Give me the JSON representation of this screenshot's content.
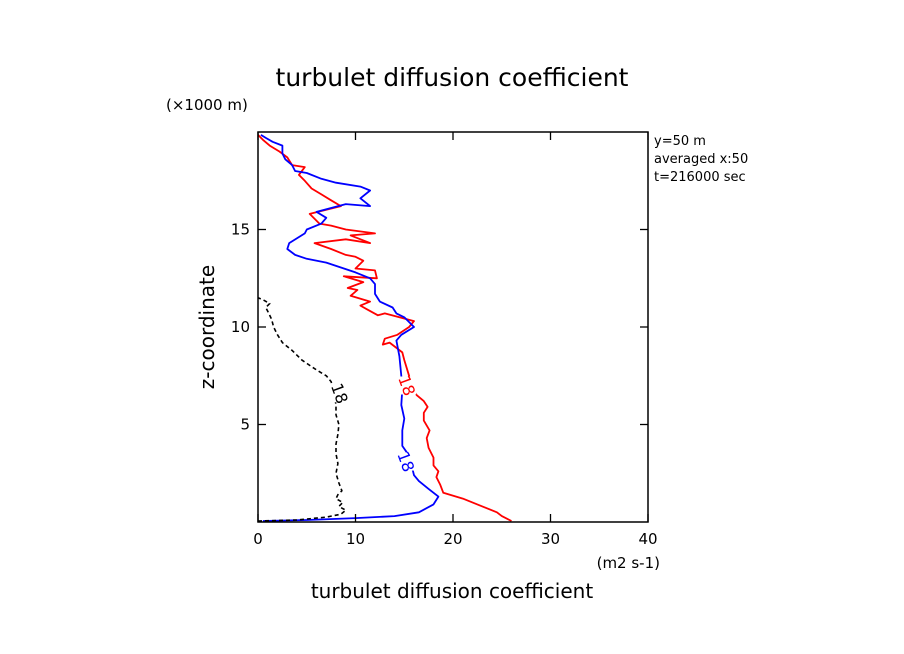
{
  "chart_data": {
    "type": "line",
    "title": "turbulet diffusion coefficient",
    "xlabel": "turbulet diffusion coefficient",
    "ylabel": "z-coordinate",
    "x_unit": "(m2 s-1)",
    "y_unit": "(×1000 m)",
    "xlim": [
      0,
      40
    ],
    "ylim": [
      0,
      20
    ],
    "x_ticks": [
      0,
      10,
      20,
      30,
      40
    ],
    "y_ticks": [
      5,
      10,
      15
    ],
    "grid": false,
    "legend": "none",
    "info_text": [
      "y=50 m",
      "averaged  x:50",
      "t=216000 sec"
    ],
    "series": [
      {
        "color": "#ff0000",
        "style": "solid",
        "label": "18",
        "label_at": [
          15.3,
          7.0
        ],
        "points": [
          [
            26.0,
            0.05
          ],
          [
            25.0,
            0.3
          ],
          [
            24.5,
            0.5
          ],
          [
            23.0,
            0.8
          ],
          [
            21.0,
            1.2
          ],
          [
            19.0,
            1.5
          ],
          [
            18.7,
            1.9
          ],
          [
            18.3,
            2.3
          ],
          [
            18.5,
            2.6
          ],
          [
            18.0,
            2.9
          ],
          [
            18.0,
            3.3
          ],
          [
            17.5,
            3.8
          ],
          [
            17.3,
            4.3
          ],
          [
            17.6,
            4.7
          ],
          [
            17.0,
            5.2
          ],
          [
            17.0,
            5.6
          ],
          [
            17.4,
            5.9
          ],
          [
            17.0,
            6.2
          ],
          [
            16.3,
            6.5
          ],
          [
            15.8,
            6.8
          ],
          [
            15.5,
            7.5
          ],
          [
            15.0,
            8.3
          ],
          [
            14.8,
            8.7
          ],
          [
            13.5,
            9.2
          ],
          [
            12.8,
            9.1
          ],
          [
            13.0,
            9.4
          ],
          [
            14.3,
            9.6
          ],
          [
            15.5,
            10.0
          ],
          [
            16.0,
            10.3
          ],
          [
            14.5,
            10.5
          ],
          [
            13.0,
            10.7
          ],
          [
            12.3,
            10.6
          ],
          [
            11.2,
            10.9
          ],
          [
            10.5,
            11.1
          ],
          [
            11.5,
            11.3
          ],
          [
            9.5,
            11.6
          ],
          [
            10.2,
            11.9
          ],
          [
            9.2,
            12.0
          ],
          [
            10.8,
            12.3
          ],
          [
            8.8,
            12.6
          ],
          [
            12.2,
            12.5
          ],
          [
            12.0,
            12.9
          ],
          [
            10.0,
            13.0
          ],
          [
            10.8,
            13.4
          ],
          [
            10.0,
            13.6
          ],
          [
            9.0,
            13.7
          ],
          [
            7.5,
            14.0
          ],
          [
            5.8,
            14.3
          ],
          [
            9.0,
            14.5
          ],
          [
            11.5,
            14.3
          ],
          [
            9.5,
            14.7
          ],
          [
            12.0,
            14.8
          ],
          [
            9.0,
            15.0
          ],
          [
            7.5,
            15.2
          ],
          [
            6.3,
            15.3
          ],
          [
            5.3,
            15.8
          ],
          [
            8.5,
            16.2
          ],
          [
            7.5,
            16.5
          ],
          [
            6.5,
            16.8
          ],
          [
            5.5,
            17.1
          ],
          [
            4.8,
            17.5
          ],
          [
            4.2,
            17.8
          ],
          [
            4.8,
            18.2
          ],
          [
            3.5,
            18.3
          ],
          [
            3.0,
            18.7
          ],
          [
            2.2,
            19.0
          ],
          [
            1.2,
            19.3
          ],
          [
            0.5,
            19.6
          ],
          [
            0.0,
            19.85
          ]
        ]
      },
      {
        "color": "#0000ff",
        "style": "solid",
        "label": "18",
        "label_at": [
          15.2,
          3.1
        ],
        "points": [
          [
            0.5,
            0.05
          ],
          [
            5.0,
            0.1
          ],
          [
            10.0,
            0.2
          ],
          [
            14.0,
            0.3
          ],
          [
            16.5,
            0.5
          ],
          [
            18.0,
            0.9
          ],
          [
            18.5,
            1.3
          ],
          [
            17.5,
            1.7
          ],
          [
            16.5,
            2.1
          ],
          [
            16.0,
            2.4
          ],
          [
            15.5,
            3.4
          ],
          [
            14.8,
            3.9
          ],
          [
            14.8,
            4.7
          ],
          [
            15.0,
            5.3
          ],
          [
            14.7,
            6.0
          ],
          [
            14.8,
            6.8
          ],
          [
            14.7,
            7.5
          ],
          [
            14.5,
            8.5
          ],
          [
            14.2,
            9.3
          ],
          [
            14.7,
            9.6
          ],
          [
            16.0,
            10.0
          ],
          [
            15.0,
            10.5
          ],
          [
            14.2,
            10.7
          ],
          [
            13.8,
            11.0
          ],
          [
            12.5,
            11.3
          ],
          [
            12.0,
            11.7
          ],
          [
            12.0,
            12.2
          ],
          [
            11.5,
            12.5
          ],
          [
            10.0,
            12.8
          ],
          [
            7.0,
            13.3
          ],
          [
            5.0,
            13.5
          ],
          [
            3.8,
            13.7
          ],
          [
            3.0,
            14.0
          ],
          [
            3.2,
            14.3
          ],
          [
            4.8,
            14.8
          ],
          [
            5.0,
            15.0
          ],
          [
            6.5,
            15.3
          ],
          [
            7.0,
            15.6
          ],
          [
            6.0,
            15.9
          ],
          [
            7.5,
            16.1
          ],
          [
            9.0,
            16.3
          ],
          [
            11.5,
            16.2
          ],
          [
            10.5,
            16.6
          ],
          [
            11.5,
            17.0
          ],
          [
            10.5,
            17.2
          ],
          [
            8.0,
            17.4
          ],
          [
            6.5,
            17.6
          ],
          [
            5.0,
            17.9
          ],
          [
            3.8,
            18.0
          ],
          [
            3.5,
            18.3
          ],
          [
            2.8,
            18.6
          ],
          [
            2.5,
            18.9
          ],
          [
            2.5,
            19.3
          ],
          [
            1.5,
            19.5
          ],
          [
            0.8,
            19.7
          ],
          [
            0.3,
            19.85
          ]
        ]
      },
      {
        "color": "#000000",
        "style": "dashed",
        "label": "18",
        "label_at": [
          8.4,
          6.6
        ],
        "points": [
          [
            0.0,
            0.05
          ],
          [
            4.0,
            0.1
          ],
          [
            7.0,
            0.25
          ],
          [
            8.5,
            0.4
          ],
          [
            9.0,
            0.6
          ],
          [
            8.3,
            0.8
          ],
          [
            8.7,
            1.0
          ],
          [
            8.0,
            1.2
          ],
          [
            8.2,
            1.4
          ],
          [
            8.6,
            1.6
          ],
          [
            8.3,
            2.0
          ],
          [
            8.0,
            2.5
          ],
          [
            8.2,
            3.0
          ],
          [
            8.0,
            3.5
          ],
          [
            8.0,
            4.0
          ],
          [
            8.2,
            4.5
          ],
          [
            8.3,
            5.0
          ],
          [
            8.0,
            5.5
          ],
          [
            8.0,
            6.0
          ],
          [
            7.8,
            6.6
          ],
          [
            7.5,
            7.2
          ],
          [
            7.0,
            7.5
          ],
          [
            6.0,
            7.8
          ],
          [
            4.5,
            8.3
          ],
          [
            3.5,
            8.8
          ],
          [
            2.5,
            9.2
          ],
          [
            2.0,
            9.6
          ],
          [
            1.6,
            10.0
          ],
          [
            1.4,
            10.4
          ],
          [
            1.0,
            10.8
          ],
          [
            0.8,
            11.0
          ],
          [
            1.2,
            11.2
          ],
          [
            0.5,
            11.4
          ],
          [
            0.0,
            11.5
          ]
        ]
      }
    ]
  }
}
